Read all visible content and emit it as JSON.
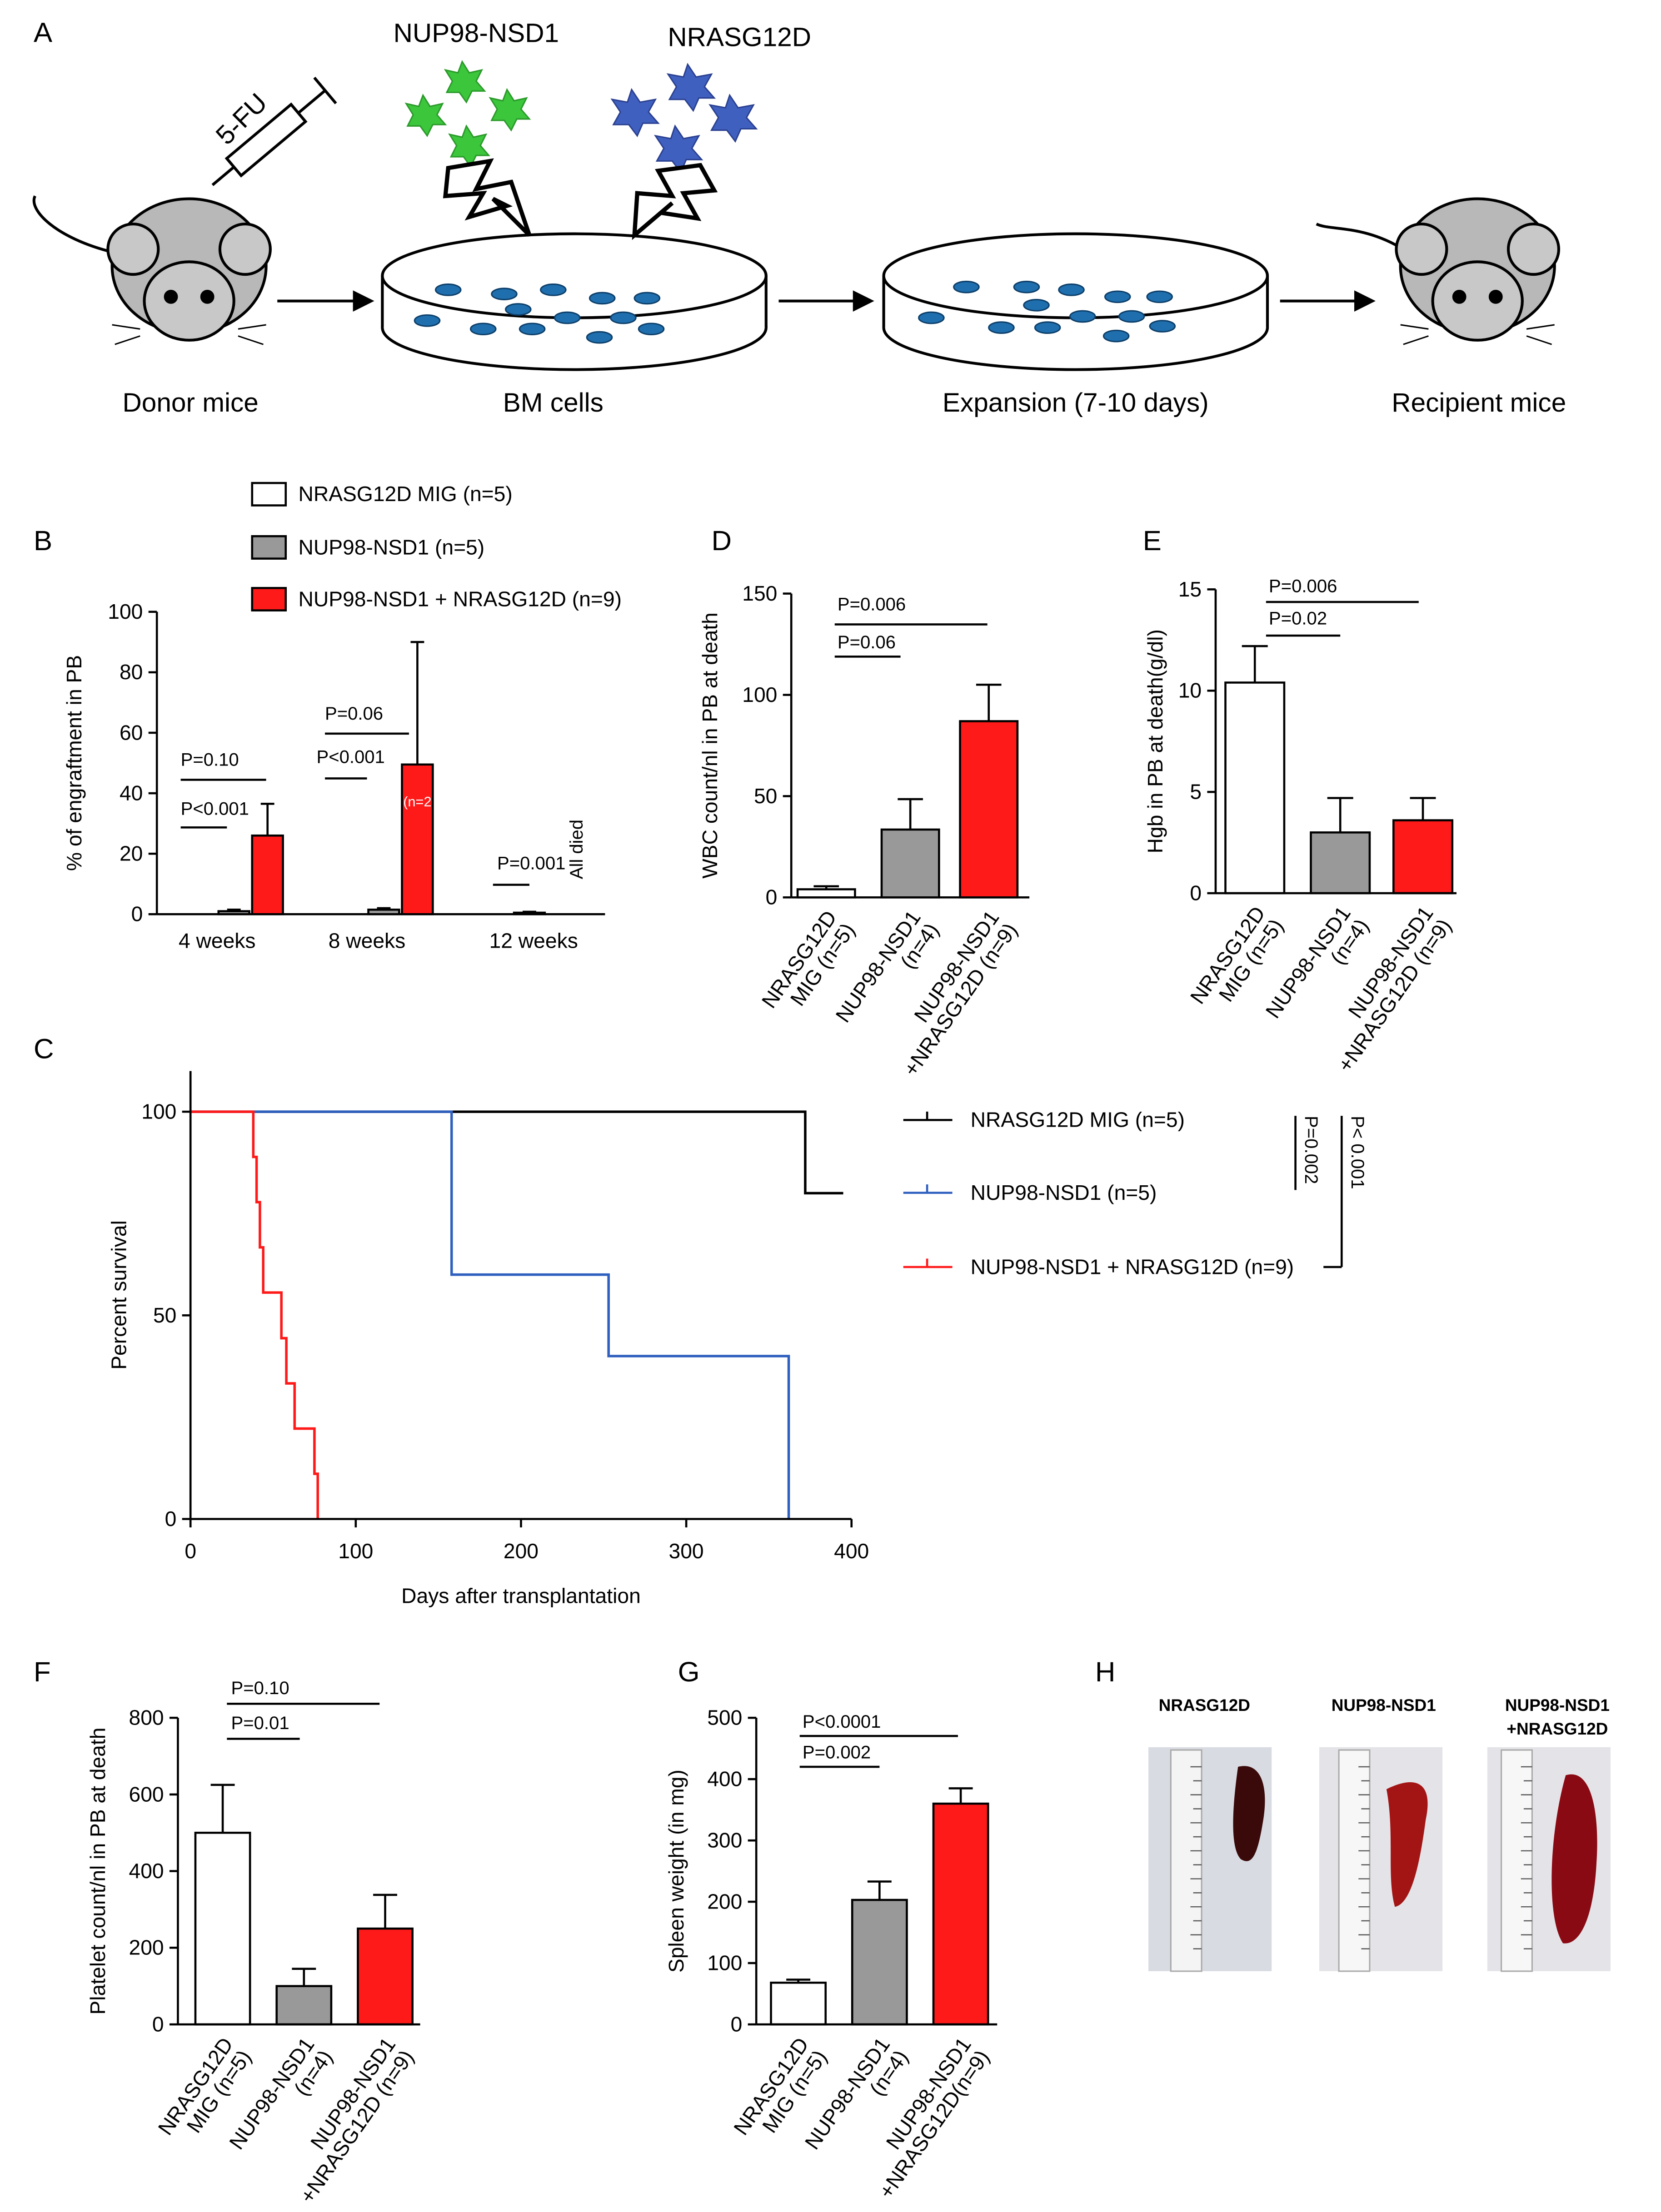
{
  "panel_labels": [
    "A",
    "B",
    "C",
    "D",
    "E",
    "F",
    "G",
    "H"
  ],
  "diagram": {
    "injection": "5-FU",
    "vectors": [
      "NUP98-NSD1",
      "NRASG12D"
    ],
    "steps": [
      "Donor mice",
      "BM cells",
      "Expansion (7-10 days)",
      "Recipient  mice"
    ]
  },
  "photos": {
    "labels": [
      [
        "NRASG12D"
      ],
      [
        "NUP98-NSD1"
      ],
      [
        "NUP98-NSD1",
        "+NRASG12D"
      ]
    ]
  },
  "chart_data": [
    {
      "type": "bar",
      "ylabel": "% of engraftment in PB",
      "categories": [
        "4 weeks",
        "8 weeks",
        "12 weeks"
      ],
      "series": [
        {
          "name": "NRASG12D MIG (n=5)",
          "color": "#ffffff",
          "values": [
            0,
            0,
            0
          ]
        },
        {
          "name": "NUP98-NSD1 (n=5)",
          "color": "#999999",
          "values": [
            1,
            1.5,
            0.5
          ],
          "errors": [
            0.5,
            0.5,
            0.3
          ]
        },
        {
          "name": "NUP98-NSD1 + NRASG12D (n=9)",
          "color": "#ff1a1a",
          "values": [
            26,
            49.5,
            null
          ],
          "errors": [
            10.5,
            40.5,
            null
          ]
        }
      ],
      "ylim": [
        0,
        100
      ],
      "yticks": [
        0,
        20,
        40,
        60,
        80,
        100
      ],
      "annotations": [
        "P=0.10",
        "P<0.001",
        "P=0.06",
        "P<0.001",
        "P=0.001",
        "All died",
        "(n=2"
      ]
    },
    {
      "type": "line",
      "xlabel": "Days after transplantation",
      "ylabel": "Percent survival",
      "series": [
        {
          "name": "NRASG12D MIG (n=5)",
          "color": "#000000",
          "x": [
            0,
            372,
            372,
            395
          ],
          "values": [
            100,
            100,
            80,
            80
          ]
        },
        {
          "name": "NUP98-NSD1 (n=5)",
          "color": "#2f5fbf",
          "x": [
            0,
            158,
            158,
            253,
            253,
            362,
            362
          ],
          "values": [
            100,
            100,
            60,
            60,
            40,
            40,
            0
          ]
        },
        {
          "name": "NUP98-NSD1 + NRASG12D (n=9)",
          "color": "#ff1a1a",
          "x": [
            0,
            38,
            38,
            40,
            40,
            42,
            42,
            44,
            44,
            55,
            55,
            58,
            58,
            63,
            63,
            75,
            75,
            77,
            77
          ],
          "values": [
            100,
            100,
            88.9,
            88.9,
            77.8,
            77.8,
            66.7,
            66.7,
            55.6,
            55.6,
            44.4,
            44.4,
            33.3,
            33.3,
            22.2,
            22.2,
            11.1,
            11.1,
            0
          ]
        }
      ],
      "xlim": [
        0,
        400
      ],
      "xticks": [
        0,
        100,
        200,
        300,
        400
      ],
      "ylim": [
        0,
        110
      ],
      "yticks": [
        0,
        50,
        100
      ],
      "annotations": [
        "P=0.002",
        "P< 0.001"
      ]
    },
    {
      "type": "bar",
      "ylabel": "WBC count/nl  in PB at death",
      "categories": [
        [
          "NRASG12D",
          "MIG (n=5)"
        ],
        [
          "NUP98-NSD1",
          "(n=4)"
        ],
        [
          "NUP98-NSD1",
          "+NRASG12D (n=9)"
        ]
      ],
      "values": [
        4,
        33.5,
        87
      ],
      "errors": [
        1.5,
        15,
        18
      ],
      "colors": [
        "#ffffff",
        "#999999",
        "#ff1a1a"
      ],
      "ylim": [
        0,
        150
      ],
      "yticks": [
        0,
        50,
        100,
        150
      ],
      "annotations": [
        "P=0.006",
        "P=0.06"
      ]
    },
    {
      "type": "bar",
      "ylabel": "Hgb in PB at death(g/dl)",
      "categories": [
        [
          "NRASG12D",
          "MIG (n=5)"
        ],
        [
          "NUP98-NSD1",
          "(n=4)"
        ],
        [
          "NUP98-NSD1",
          "+NRASG12D (n=9)"
        ]
      ],
      "values": [
        10.4,
        3.0,
        3.6
      ],
      "errors": [
        1.8,
        1.7,
        1.1
      ],
      "colors": [
        "#ffffff",
        "#999999",
        "#ff1a1a"
      ],
      "ylim": [
        0,
        15
      ],
      "yticks": [
        0,
        5,
        10,
        15
      ],
      "annotations": [
        "P=0.006",
        "P=0.02"
      ]
    },
    {
      "type": "bar",
      "ylabel": "Platelet count/nl  in PB at death",
      "categories": [
        [
          "NRASG12D",
          "MIG (n=5)"
        ],
        [
          "NUP98-NSD1",
          "(n=4)"
        ],
        [
          "NUP98-NSD1",
          "+NRASG12D (n=9)"
        ]
      ],
      "values": [
        500,
        100,
        250
      ],
      "errors": [
        125,
        45,
        88
      ],
      "colors": [
        "#ffffff",
        "#999999",
        "#ff1a1a"
      ],
      "ylim": [
        0,
        800
      ],
      "yticks": [
        0,
        200,
        400,
        600,
        800
      ],
      "annotations": [
        "P=0.10",
        "P=0.01"
      ]
    },
    {
      "type": "bar",
      "ylabel": "Spleen weight (in mg)",
      "categories": [
        [
          "NRASG12D",
          "MIG (n=5)"
        ],
        [
          "NUP98-NSD1",
          "(n=4)"
        ],
        [
          "NUP98-NSD1",
          "+NRASG12D(n=9)"
        ]
      ],
      "values": [
        68,
        203,
        360
      ],
      "errors": [
        5,
        30,
        25
      ],
      "colors": [
        "#ffffff",
        "#999999",
        "#ff1a1a"
      ],
      "ylim": [
        0,
        500
      ],
      "yticks": [
        0,
        100,
        200,
        300,
        400,
        500
      ],
      "annotations": [
        "P<0.0001",
        "P=0.002"
      ]
    }
  ]
}
